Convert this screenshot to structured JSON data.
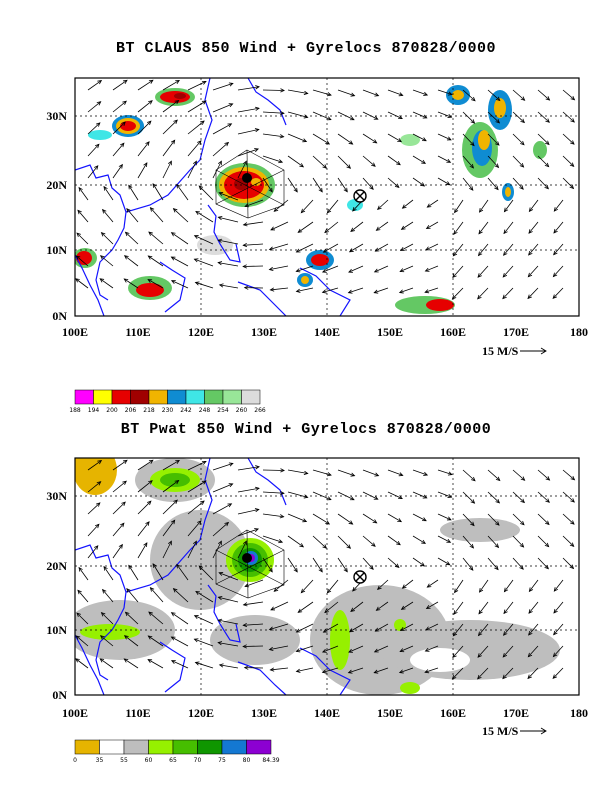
{
  "panel1": {
    "title": "BT CLAUS 850 Wind + Gyrelocs 870828/0000",
    "scale_label": "15 M/S",
    "colorbar": {
      "labels": [
        "188",
        "194",
        "200",
        "206",
        "218",
        "230",
        "242",
        "248",
        "254",
        "260",
        "266"
      ],
      "colors": [
        "#ff00ff",
        "#ffff00",
        "#e60000",
        "#a00000",
        "#f0b400",
        "#0f8cd2",
        "#3fe6e6",
        "#64c864",
        "#98e698",
        "#dcdcdc"
      ]
    }
  },
  "panel2": {
    "title": "BT Pwat 850 Wind + Gyrelocs 870828/0000",
    "scale_label": "15 M/S",
    "colorbar": {
      "labels": [
        "0",
        "35",
        "55",
        "60",
        "65",
        "70",
        "75",
        "80",
        "84.39"
      ],
      "colors": [
        "#e6b400",
        "#ffffff",
        "#bebebe",
        "#96f000",
        "#46be00",
        "#0f9600",
        "#1478d2",
        "#8c00d2"
      ]
    }
  },
  "axes": {
    "x_ticks": [
      "100E",
      "110E",
      "120E",
      "130E",
      "140E",
      "150E",
      "160E",
      "170E",
      "180"
    ],
    "y_ticks": [
      "0N",
      "10N",
      "20N",
      "30N"
    ]
  },
  "markers": {
    "storm_center": {
      "lon": 127,
      "lat": 21
    },
    "gyre_location": {
      "lon": 145,
      "lat": 18.5
    }
  }
}
